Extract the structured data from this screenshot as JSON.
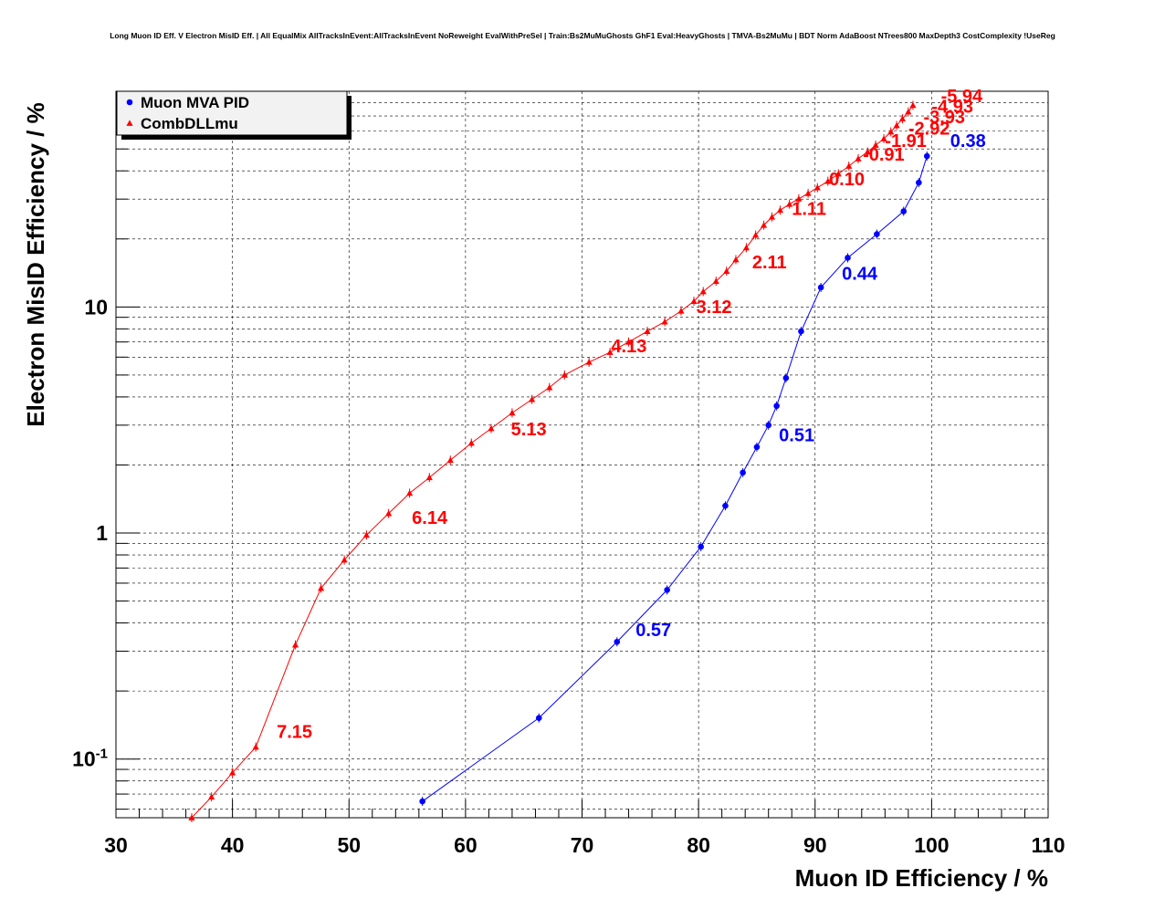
{
  "chart_data": {
    "type": "line",
    "title": "Long Muon ID Eff. V Electron MisID Eff. | All EqualMix AllTracksInEvent:AllTracksInEvent NoReweight EvalWithPreSel | Train:Bs2MuMuGhosts GhF1 Eval:HeavyGhosts | TMVA-Bs2MuMu | BDT Norm AdaBoost NTrees800 MaxDepth3 CostComplexity !UseReg",
    "xlabel": "Muon ID Efficiency / %",
    "ylabel": "Electron MisID Efficiency / %",
    "x_scale": "linear",
    "y_scale": "log",
    "xlim": [
      30,
      110
    ],
    "ylim": [
      0.055,
      90
    ],
    "grid": true,
    "legend_position": "top-left",
    "x_ticks": [
      {
        "value": 30,
        "label": "30"
      },
      {
        "value": 40,
        "label": "40"
      },
      {
        "value": 50,
        "label": "50"
      },
      {
        "value": 60,
        "label": "60"
      },
      {
        "value": 70,
        "label": "70"
      },
      {
        "value": 80,
        "label": "80"
      },
      {
        "value": 90,
        "label": "90"
      },
      {
        "value": 100,
        "label": "100"
      },
      {
        "value": 110,
        "label": "110"
      }
    ],
    "y_ticks": [
      {
        "value": 0.1,
        "base": "10",
        "exp": "-1"
      },
      {
        "value": 1,
        "base": "1",
        "exp": ""
      },
      {
        "value": 10,
        "base": "10",
        "exp": ""
      }
    ],
    "series": [
      {
        "name": "Muon MVA PID",
        "color": "#0000ff",
        "marker": "circle",
        "x": [
          56.3,
          66.3,
          73.0,
          77.3,
          80.2,
          82.3,
          83.8,
          85.0,
          86.0,
          86.7,
          87.5,
          88.8,
          90.5,
          92.8,
          95.3,
          97.6,
          98.9,
          99.6
        ],
        "y": [
          0.065,
          0.152,
          0.33,
          0.56,
          0.87,
          1.32,
          1.85,
          2.4,
          3.0,
          3.65,
          4.85,
          7.8,
          12.2,
          16.5,
          21.0,
          26.5,
          35.5,
          46.5
        ]
      },
      {
        "name": "CombDLLmu",
        "color": "#ff0000",
        "marker": "triangle",
        "x": [
          36.5,
          38.2,
          40.0,
          42.0,
          45.4,
          47.6,
          49.6,
          51.5,
          53.4,
          55.2,
          56.9,
          58.7,
          60.5,
          62.2,
          64.0,
          65.7,
          67.2,
          68.5,
          70.6,
          72.4,
          74.0,
          75.6,
          77.1,
          78.5,
          79.6,
          80.4,
          81.5,
          82.4,
          83.2,
          84.1,
          84.9,
          85.6,
          86.3,
          87.0,
          87.8,
          88.6,
          89.4,
          90.2,
          91.1,
          92.0,
          92.9,
          93.7,
          94.5,
          95.2,
          95.9,
          96.5,
          97.0,
          97.5,
          98.0,
          98.4
        ],
        "y": [
          0.055,
          0.068,
          0.087,
          0.113,
          0.32,
          0.57,
          0.76,
          0.98,
          1.22,
          1.5,
          1.76,
          2.1,
          2.5,
          2.9,
          3.4,
          3.9,
          4.4,
          5.0,
          5.7,
          6.3,
          7.0,
          7.8,
          8.6,
          9.6,
          10.6,
          11.7,
          13.0,
          14.4,
          16.2,
          18.3,
          20.8,
          23.0,
          25.0,
          26.8,
          28.5,
          30.1,
          31.8,
          33.7,
          36.0,
          38.8,
          42.0,
          45.3,
          48.5,
          52.0,
          55.5,
          59.5,
          63.5,
          68.0,
          73.0,
          78.0
        ]
      }
    ],
    "annotations": [
      {
        "text": "0.38",
        "series": "Muon MVA PID",
        "x": 101.6,
        "y": 51.0
      },
      {
        "text": "0.44",
        "series": "Muon MVA PID",
        "x": 92.3,
        "y": 13.2
      },
      {
        "text": "0.51",
        "series": "Muon MVA PID",
        "x": 86.9,
        "y": 2.55
      },
      {
        "text": "0.57",
        "series": "Muon MVA PID",
        "x": 74.6,
        "y": 0.35
      },
      {
        "text": "-5.94",
        "series": "CombDLLmu",
        "x": 100.8,
        "y": 80.5
      },
      {
        "text": "-4.93",
        "series": "CombDLLmu",
        "x": 100.0,
        "y": 72.5
      },
      {
        "text": "-3.93",
        "series": "CombDLLmu",
        "x": 99.3,
        "y": 65.0
      },
      {
        "text": "-2.92",
        "series": "CombDLLmu",
        "x": 98.0,
        "y": 58.0
      },
      {
        "text": "-1.91",
        "series": "CombDLLmu",
        "x": 96.0,
        "y": 51.0
      },
      {
        "text": "-0.91",
        "series": "CombDLLmu",
        "x": 94.1,
        "y": 44.5
      },
      {
        "text": "0.10",
        "series": "CombDLLmu",
        "x": 91.2,
        "y": 34.5
      },
      {
        "text": "1.11",
        "series": "CombDLLmu",
        "x": 88.0,
        "y": 25.5
      },
      {
        "text": "2.11",
        "series": "CombDLLmu",
        "x": 84.6,
        "y": 14.8
      },
      {
        "text": "3.12",
        "series": "CombDLLmu",
        "x": 79.8,
        "y": 9.4
      },
      {
        "text": "4.13",
        "series": "CombDLLmu",
        "x": 72.5,
        "y": 6.3
      },
      {
        "text": "5.13",
        "series": "CombDLLmu",
        "x": 63.9,
        "y": 2.7
      },
      {
        "text": "6.14",
        "series": "CombDLLmu",
        "x": 55.4,
        "y": 1.1
      },
      {
        "text": "7.15",
        "series": "CombDLLmu",
        "x": 43.8,
        "y": 0.124
      }
    ]
  }
}
